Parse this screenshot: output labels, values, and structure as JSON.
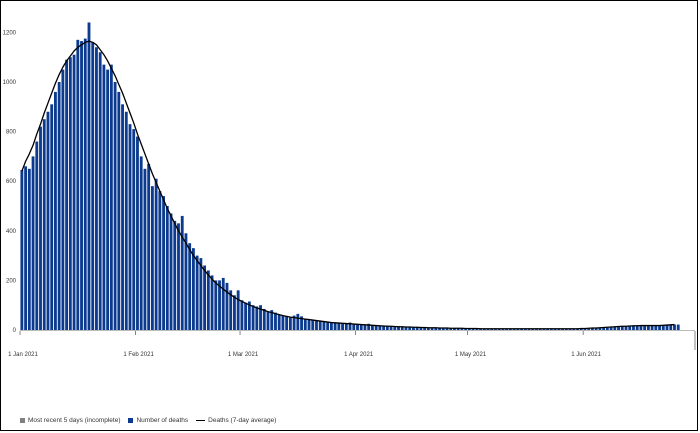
{
  "chart_data": {
    "type": "bar",
    "title": "",
    "xlabel": "",
    "ylabel": "",
    "ylim": [
      0,
      1250
    ],
    "y_ticks": [
      0,
      200,
      400,
      600,
      800,
      1000,
      1200
    ],
    "x_ticks": [
      {
        "label": "1 Jan 2021",
        "date": "2021-01-01"
      },
      {
        "label": "1 Feb 2021",
        "date": "2021-02-01"
      },
      {
        "label": "1 Mar 2021",
        "date": "2021-03-01"
      },
      {
        "label": "1 Apr 2021",
        "date": "2021-04-01"
      },
      {
        "label": "1 May 2021",
        "date": "2021-05-01"
      },
      {
        "label": "1 Jun 2021",
        "date": "2021-06-01"
      }
    ],
    "x_range": [
      "2021-01-01",
      "2021-06-30"
    ],
    "grid": false,
    "legend_position": "bottom-left",
    "series": [
      {
        "name": "Most recent 5 days (incomplete)",
        "color": "#808080",
        "values": []
      },
      {
        "name": "Number of deaths",
        "color": "#0b3a8e",
        "start_date": "2021-01-01",
        "values": [
          645,
          660,
          650,
          700,
          760,
          820,
          850,
          880,
          910,
          960,
          1000,
          1050,
          1090,
          1100,
          1110,
          1170,
          1165,
          1175,
          1240,
          1160,
          1140,
          1120,
          1070,
          1050,
          1070,
          1000,
          960,
          910,
          880,
          830,
          810,
          780,
          700,
          650,
          670,
          580,
          610,
          560,
          540,
          500,
          470,
          440,
          430,
          460,
          390,
          350,
          330,
          300,
          290,
          260,
          240,
          220,
          200,
          200,
          210,
          190,
          160,
          140,
          160,
          120,
          110,
          115,
          100,
          95,
          100,
          85,
          75,
          80,
          70,
          62,
          58,
          55,
          50,
          58,
          65,
          55,
          45,
          42,
          40,
          38,
          36,
          35,
          32,
          30,
          30,
          28,
          26,
          25,
          30,
          22,
          22,
          24,
          20,
          25,
          18,
          20,
          17,
          16,
          18,
          14,
          15,
          15,
          13,
          12,
          12,
          11,
          11,
          10,
          10,
          10,
          9,
          9,
          8,
          8,
          8,
          8,
          7,
          7,
          7,
          6,
          6,
          6,
          5,
          5,
          5,
          4,
          5,
          5,
          4,
          4,
          5,
          5,
          5,
          6,
          6,
          5,
          5,
          6,
          5,
          5,
          4,
          5,
          4,
          5,
          5,
          4,
          4,
          5,
          5,
          4,
          6,
          5,
          5,
          6,
          7,
          8,
          8,
          9,
          10,
          12,
          12,
          14,
          15,
          15,
          16,
          17,
          18,
          17,
          18,
          18,
          18,
          16,
          17,
          19,
          20,
          22,
          22
        ]
      },
      {
        "name": "Deaths (7-day average)",
        "color": "#000000",
        "start_date": "2021-01-01",
        "values": [
          640,
          680,
          710,
          745,
          790,
          830,
          875,
          915,
          955,
          995,
          1030,
          1060,
          1085,
          1105,
          1125,
          1140,
          1150,
          1160,
          1165,
          1160,
          1150,
          1130,
          1110,
          1085,
          1055,
          1025,
          990,
          955,
          915,
          875,
          835,
          790,
          750,
          710,
          670,
          630,
          595,
          560,
          525,
          490,
          460,
          430,
          400,
          375,
          350,
          325,
          300,
          280,
          260,
          240,
          222,
          205,
          190,
          177,
          165,
          153,
          142,
          132,
          123,
          115,
          108,
          101,
          95,
          89,
          84,
          79,
          74,
          70,
          66,
          62,
          58,
          55,
          52,
          50,
          48,
          46,
          44,
          42,
          40,
          38,
          36,
          34,
          32,
          30,
          29,
          28,
          27,
          26,
          25,
          24,
          23,
          22,
          21,
          20,
          19,
          18,
          17,
          16,
          15,
          15,
          14,
          13,
          13,
          12,
          12,
          11,
          11,
          10,
          10,
          9,
          9,
          9,
          8,
          8,
          8,
          7,
          7,
          7,
          7,
          6,
          6,
          6,
          6,
          5,
          5,
          5,
          5,
          5,
          5,
          5,
          5,
          5,
          5,
          5,
          5,
          5,
          5,
          5,
          5,
          5,
          5,
          5,
          5,
          5,
          5,
          5,
          5,
          5,
          5,
          5,
          6,
          6,
          7,
          8,
          8,
          9,
          10,
          11,
          12,
          13,
          14,
          15,
          15,
          16,
          17,
          17,
          18,
          18,
          18,
          18,
          18,
          18,
          19,
          20,
          21,
          22
        ]
      }
    ]
  }
}
